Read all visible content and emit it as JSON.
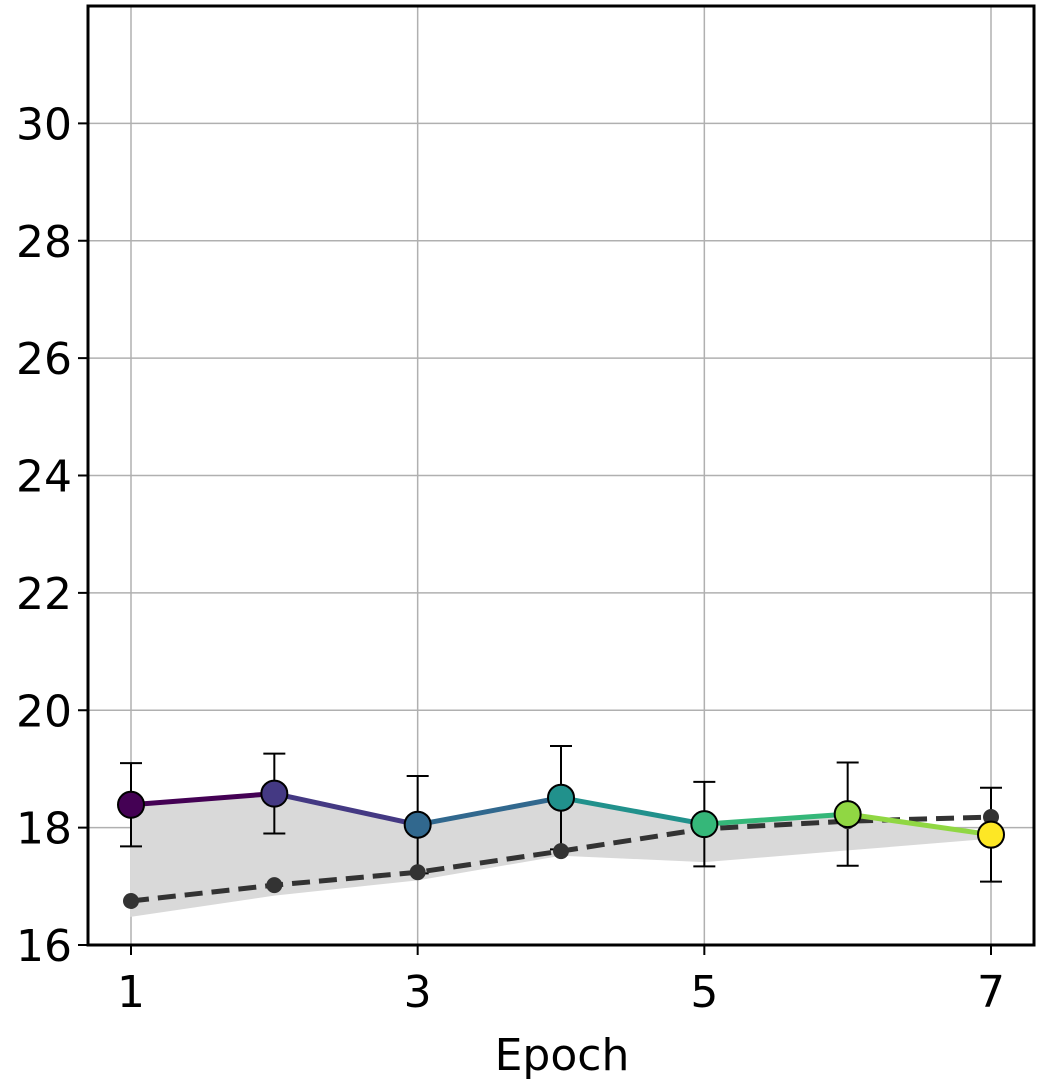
{
  "chart_data": {
    "type": "line",
    "x_label": "Epoch",
    "x": [
      1,
      2,
      3,
      4,
      5,
      6,
      7
    ],
    "series": [
      {
        "values": [
          18.39,
          18.58,
          18.05,
          18.51,
          18.06,
          18.23,
          17.88
        ],
        "errors": [
          0.71,
          0.68,
          0.83,
          0.88,
          0.72,
          0.88,
          0.8
        ],
        "colors": [
          "#440154",
          "#443983",
          "#31688e",
          "#21918c",
          "#35b779",
          "#90d743",
          "#fde725"
        ]
      },
      {
        "values": [
          16.75,
          17.02,
          17.24,
          17.6,
          17.98,
          18.11,
          18.18
        ],
        "color": "#333333",
        "dashed": true
      }
    ],
    "band_lower": [
      16.49,
      16.85,
      17.11,
      17.53,
      17.42,
      17.62,
      17.82
    ],
    "band_color": "#d9d9d9",
    "xlim": [
      0.7,
      7.3
    ],
    "ylim": [
      16,
      32
    ],
    "xticks": [
      1,
      3,
      5,
      7
    ],
    "yticks": [
      16,
      18,
      20,
      22,
      24,
      26,
      28,
      30
    ],
    "grid": true
  }
}
